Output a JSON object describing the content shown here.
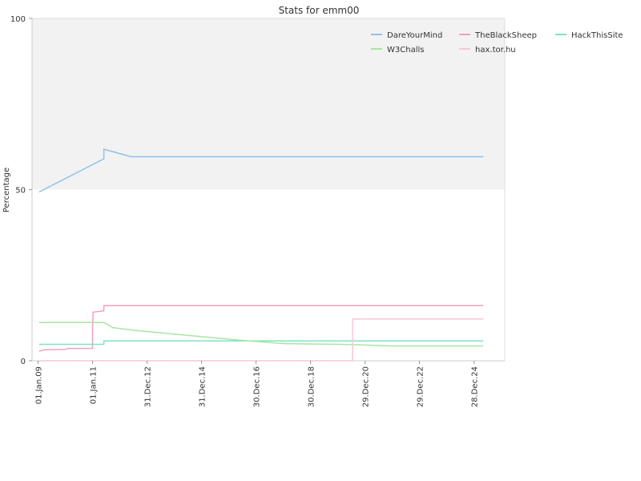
{
  "chart_data": {
    "type": "line",
    "title": "Stats for emm00",
    "ylabel": "Percentage",
    "ylim": [
      0,
      100
    ],
    "yticks": [
      0,
      50,
      100
    ],
    "xlim": [
      "2009-01-01",
      "2025-06-01"
    ],
    "xticks": [
      {
        "date": "2009-01-01",
        "label": "01.Jan.09"
      },
      {
        "date": "2011-01-01",
        "label": "01.Jan.11"
      },
      {
        "date": "2012-12-31",
        "label": "31.Dec.12"
      },
      {
        "date": "2014-12-31",
        "label": "31.Dec.14"
      },
      {
        "date": "2016-12-30",
        "label": "30.Dec.16"
      },
      {
        "date": "2018-12-30",
        "label": "30.Dec.18"
      },
      {
        "date": "2020-12-29",
        "label": "29.Dec.20"
      },
      {
        "date": "2022-12-29",
        "label": "29.Dec.22"
      },
      {
        "date": "2024-12-28",
        "label": "28.Dec.24"
      }
    ],
    "shaded_band": {
      "from": 50,
      "to": 100,
      "color": "#f2f2f2"
    },
    "grid": false,
    "legend_position": "top-right",
    "series": [
      {
        "name": "DareYourMind",
        "color": "#8fc1ea",
        "points": [
          [
            "2009-01-15",
            49.3
          ],
          [
            "2011-06-01",
            59.0
          ],
          [
            "2011-06-02",
            61.8
          ],
          [
            "2012-06-01",
            59.6
          ],
          [
            "2025-05-01",
            59.6
          ]
        ]
      },
      {
        "name": "TheBlackSheep",
        "color": "#f59fc1",
        "points": [
          [
            "2009-01-15",
            2.8
          ],
          [
            "2009-04-01",
            3.2
          ],
          [
            "2010-01-01",
            3.3
          ],
          [
            "2010-02-01",
            3.6
          ],
          [
            "2010-12-31",
            3.6
          ],
          [
            "2011-01-01",
            10.0
          ],
          [
            "2011-01-10",
            14.2
          ],
          [
            "2011-06-01",
            14.6
          ],
          [
            "2011-06-02",
            16.1
          ],
          [
            "2025-05-01",
            16.1
          ]
        ]
      },
      {
        "name": "HackThisSite",
        "color": "#7fe3c4",
        "points": [
          [
            "2009-01-15",
            4.8
          ],
          [
            "2011-06-01",
            4.8
          ],
          [
            "2011-06-02",
            5.8
          ],
          [
            "2025-05-01",
            5.8
          ]
        ]
      },
      {
        "name": "W3Challs",
        "color": "#a8e6a1",
        "points": [
          [
            "2009-01-15",
            11.2
          ],
          [
            "2011-06-01",
            11.2
          ],
          [
            "2011-10-01",
            9.7
          ],
          [
            "2012-06-01",
            9.0
          ],
          [
            "2014-01-01",
            7.8
          ],
          [
            "2016-06-01",
            6.0
          ],
          [
            "2018-01-01",
            5.0
          ],
          [
            "2020-01-01",
            4.8
          ],
          [
            "2021-01-01",
            4.6
          ],
          [
            "2022-01-01",
            4.3
          ],
          [
            "2025-05-01",
            4.3
          ]
        ]
      },
      {
        "name": "hax.tor.hu",
        "color": "#f7c6d5",
        "points": [
          [
            "2009-01-15",
            0.0
          ],
          [
            "2020-07-15",
            0.0
          ],
          [
            "2020-07-16",
            12.2
          ],
          [
            "2025-05-01",
            12.2
          ]
        ]
      }
    ]
  }
}
